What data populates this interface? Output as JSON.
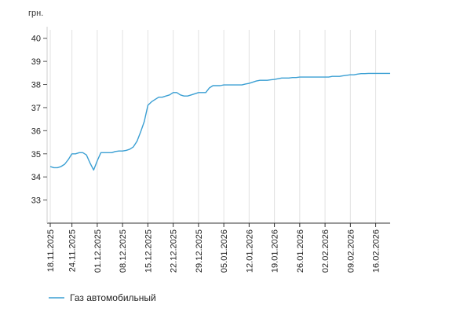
{
  "chart_data": {
    "type": "line",
    "ylabel": "грн.",
    "ylim": [
      32,
      40.5
    ],
    "yticks": [
      33,
      34,
      35,
      36,
      37,
      38,
      39,
      40
    ],
    "xlim": [
      "2025-11-18",
      "2026-02-20"
    ],
    "xticks": [
      {
        "date": "2025-11-18",
        "label": "18.11.2025"
      },
      {
        "date": "2025-11-24",
        "label": "24.11.2025"
      },
      {
        "date": "2025-12-01",
        "label": "01.12.2025"
      },
      {
        "date": "2025-12-08",
        "label": "08.12.2025"
      },
      {
        "date": "2025-12-15",
        "label": "15.12.2025"
      },
      {
        "date": "2025-12-22",
        "label": "22.12.2025"
      },
      {
        "date": "2025-12-29",
        "label": "29.12.2025"
      },
      {
        "date": "2026-01-05",
        "label": "05.01.2026"
      },
      {
        "date": "2026-01-12",
        "label": "12.01.2026"
      },
      {
        "date": "2026-01-19",
        "label": "19.01.2026"
      },
      {
        "date": "2026-01-26",
        "label": "26.01.2026"
      },
      {
        "date": "2026-02-02",
        "label": "02.02.2026"
      },
      {
        "date": "2026-02-09",
        "label": "09.02.2026"
      },
      {
        "date": "2026-02-16",
        "label": "16.02.2026"
      }
    ],
    "grid": {
      "vertical": true,
      "horizontal": false
    },
    "legend_position": "bottom-left",
    "series": [
      {
        "name": "Газ автомобильный",
        "color": "#3a9fd3",
        "points": [
          [
            "2025-11-18",
            34.45
          ],
          [
            "2025-11-19",
            34.4
          ],
          [
            "2025-11-20",
            34.4
          ],
          [
            "2025-11-21",
            34.45
          ],
          [
            "2025-11-22",
            34.55
          ],
          [
            "2025-11-23",
            34.75
          ],
          [
            "2025-11-24",
            35.0
          ],
          [
            "2025-11-25",
            35.0
          ],
          [
            "2025-11-26",
            35.05
          ],
          [
            "2025-11-27",
            35.05
          ],
          [
            "2025-11-28",
            34.95
          ],
          [
            "2025-11-29",
            34.6
          ],
          [
            "2025-11-30",
            34.3
          ],
          [
            "2025-12-01",
            34.7
          ],
          [
            "2025-12-02",
            35.05
          ],
          [
            "2025-12-03",
            35.05
          ],
          [
            "2025-12-04",
            35.05
          ],
          [
            "2025-12-05",
            35.05
          ],
          [
            "2025-12-06",
            35.1
          ],
          [
            "2025-12-07",
            35.12
          ],
          [
            "2025-12-08",
            35.12
          ],
          [
            "2025-12-09",
            35.15
          ],
          [
            "2025-12-10",
            35.2
          ],
          [
            "2025-12-11",
            35.3
          ],
          [
            "2025-12-12",
            35.55
          ],
          [
            "2025-12-13",
            35.95
          ],
          [
            "2025-12-14",
            36.4
          ],
          [
            "2025-12-15",
            37.1
          ],
          [
            "2025-12-16",
            37.25
          ],
          [
            "2025-12-17",
            37.35
          ],
          [
            "2025-12-18",
            37.45
          ],
          [
            "2025-12-19",
            37.45
          ],
          [
            "2025-12-20",
            37.5
          ],
          [
            "2025-12-21",
            37.55
          ],
          [
            "2025-12-22",
            37.65
          ],
          [
            "2025-12-23",
            37.65
          ],
          [
            "2025-12-24",
            37.55
          ],
          [
            "2025-12-25",
            37.5
          ],
          [
            "2025-12-26",
            37.5
          ],
          [
            "2025-12-27",
            37.55
          ],
          [
            "2025-12-28",
            37.6
          ],
          [
            "2025-12-29",
            37.65
          ],
          [
            "2025-12-30",
            37.65
          ],
          [
            "2025-12-31",
            37.65
          ],
          [
            "2026-01-01",
            37.85
          ],
          [
            "2026-01-02",
            37.95
          ],
          [
            "2026-01-03",
            37.95
          ],
          [
            "2026-01-04",
            37.95
          ],
          [
            "2026-01-05",
            37.98
          ],
          [
            "2026-01-06",
            37.98
          ],
          [
            "2026-01-07",
            37.98
          ],
          [
            "2026-01-08",
            37.98
          ],
          [
            "2026-01-09",
            37.98
          ],
          [
            "2026-01-10",
            37.98
          ],
          [
            "2026-01-11",
            38.02
          ],
          [
            "2026-01-12",
            38.05
          ],
          [
            "2026-01-13",
            38.1
          ],
          [
            "2026-01-14",
            38.15
          ],
          [
            "2026-01-15",
            38.18
          ],
          [
            "2026-01-16",
            38.18
          ],
          [
            "2026-01-17",
            38.18
          ],
          [
            "2026-01-18",
            38.2
          ],
          [
            "2026-01-19",
            38.22
          ],
          [
            "2026-01-20",
            38.25
          ],
          [
            "2026-01-21",
            38.28
          ],
          [
            "2026-01-22",
            38.28
          ],
          [
            "2026-01-23",
            38.28
          ],
          [
            "2026-01-24",
            38.3
          ],
          [
            "2026-01-25",
            38.3
          ],
          [
            "2026-01-26",
            38.32
          ],
          [
            "2026-01-27",
            38.32
          ],
          [
            "2026-01-28",
            38.32
          ],
          [
            "2026-01-29",
            38.32
          ],
          [
            "2026-01-30",
            38.32
          ],
          [
            "2026-01-31",
            38.32
          ],
          [
            "2026-02-01",
            38.32
          ],
          [
            "2026-02-02",
            38.32
          ],
          [
            "2026-02-03",
            38.32
          ],
          [
            "2026-02-04",
            38.35
          ],
          [
            "2026-02-05",
            38.35
          ],
          [
            "2026-02-06",
            38.35
          ],
          [
            "2026-02-07",
            38.38
          ],
          [
            "2026-02-08",
            38.4
          ],
          [
            "2026-02-09",
            38.42
          ],
          [
            "2026-02-10",
            38.42
          ],
          [
            "2026-02-11",
            38.45
          ],
          [
            "2026-02-12",
            38.47
          ],
          [
            "2026-02-13",
            38.47
          ],
          [
            "2026-02-14",
            38.48
          ],
          [
            "2026-02-15",
            38.48
          ],
          [
            "2026-02-16",
            38.48
          ],
          [
            "2026-02-17",
            38.48
          ],
          [
            "2026-02-18",
            38.48
          ],
          [
            "2026-02-19",
            38.48
          ],
          [
            "2026-02-20",
            38.48
          ]
        ]
      }
    ]
  }
}
